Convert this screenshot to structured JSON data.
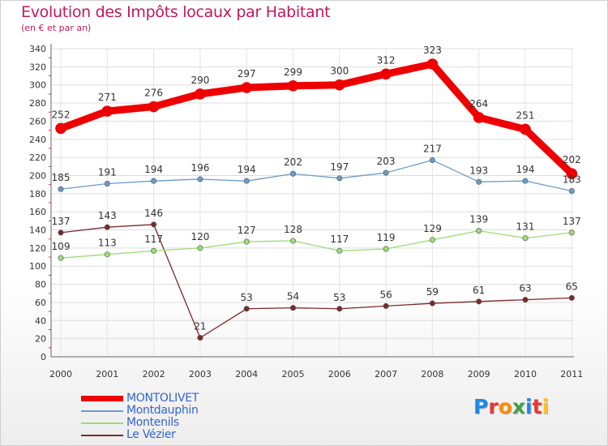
{
  "header": {
    "title": "Evolution des Impôts locaux par Habitant",
    "subtitle": "(en € et par an)"
  },
  "logo": {
    "text": "Proxiti",
    "letter_colors": [
      "#1e88e5",
      "#e53935",
      "#fb8c00",
      "#43a047",
      "#1e88e5",
      "#e53935",
      "#fbc02d"
    ]
  },
  "chart_data": {
    "type": "line",
    "x": [
      "2000",
      "2001",
      "2002",
      "2003",
      "2004",
      "2005",
      "2006",
      "2007",
      "2008",
      "2009",
      "2010",
      "2011"
    ],
    "ylim": [
      0,
      340
    ],
    "yticks": [
      0,
      20,
      40,
      60,
      80,
      100,
      120,
      140,
      160,
      180,
      200,
      220,
      240,
      260,
      280,
      300,
      320,
      340
    ],
    "grid": true,
    "legend_position": "bottom-left",
    "series": [
      {
        "name": "MONTOLIVET",
        "color": "#ee0000",
        "values": [
          252,
          271,
          276,
          290,
          297,
          299,
          300,
          312,
          323,
          264,
          251,
          202
        ]
      },
      {
        "name": "Montdauphin",
        "color": "#6b9bc9",
        "values": [
          185,
          191,
          194,
          196,
          194,
          202,
          197,
          203,
          217,
          193,
          194,
          183
        ]
      },
      {
        "name": "Montenils",
        "color": "#99dd77",
        "values": [
          109,
          113,
          117,
          120,
          127,
          128,
          117,
          119,
          129,
          139,
          131,
          137
        ]
      },
      {
        "name": "Le Vézier",
        "color": "#7a2a2a",
        "values": [
          137,
          143,
          146,
          21,
          53,
          54,
          53,
          56,
          59,
          61,
          63,
          65
        ]
      }
    ]
  }
}
